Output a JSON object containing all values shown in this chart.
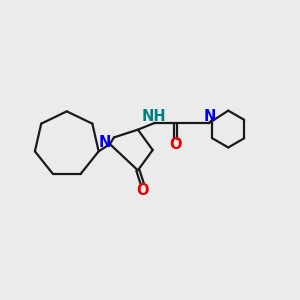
{
  "bg_color": "#ebebeb",
  "bond_color": "#1a1a1a",
  "N_color": "#0000ee",
  "NH_color": "#008080",
  "O_color": "#ee0000",
  "line_width": 1.6,
  "font_size": 10.5,
  "fig_size": [
    3.0,
    3.0
  ],
  "dpi": 100,
  "xlim": [
    0,
    10
  ],
  "ylim": [
    0,
    10
  ]
}
